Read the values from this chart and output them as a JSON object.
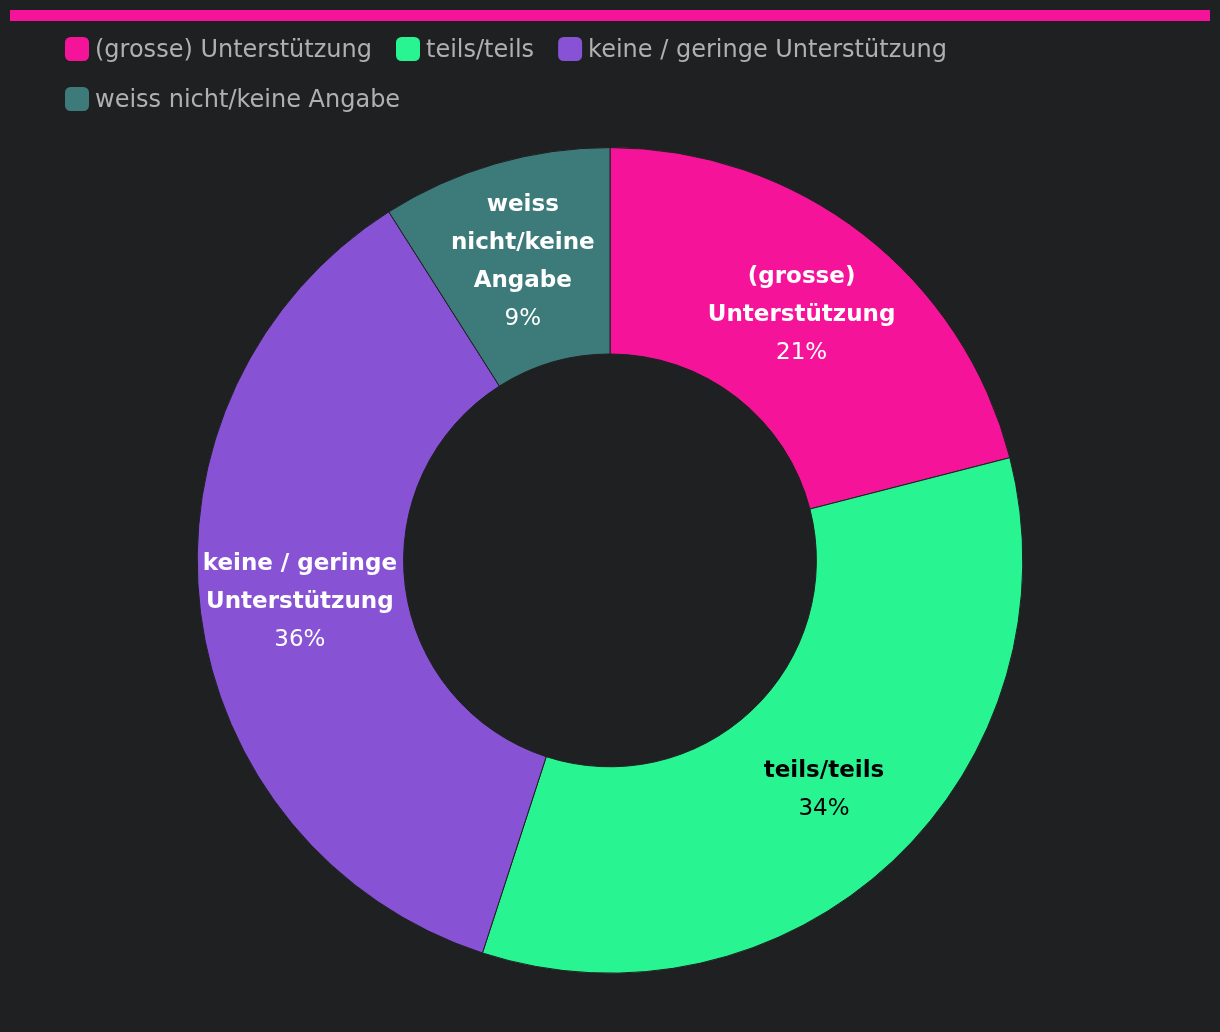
{
  "chart_data": {
    "type": "donut",
    "categories": [
      "(grosse) Unterstützung",
      "teils/teils",
      "keine / geringe Unterstützung",
      "weiss nicht/keine Angabe"
    ],
    "values": [
      21,
      34,
      36,
      9
    ],
    "colors": [
      "#f5139a",
      "#28f591",
      "#8752d4",
      "#3d7a7a"
    ],
    "value_labels": [
      "21%",
      "34%",
      "36%",
      "9%"
    ],
    "legend": "top left"
  }
}
